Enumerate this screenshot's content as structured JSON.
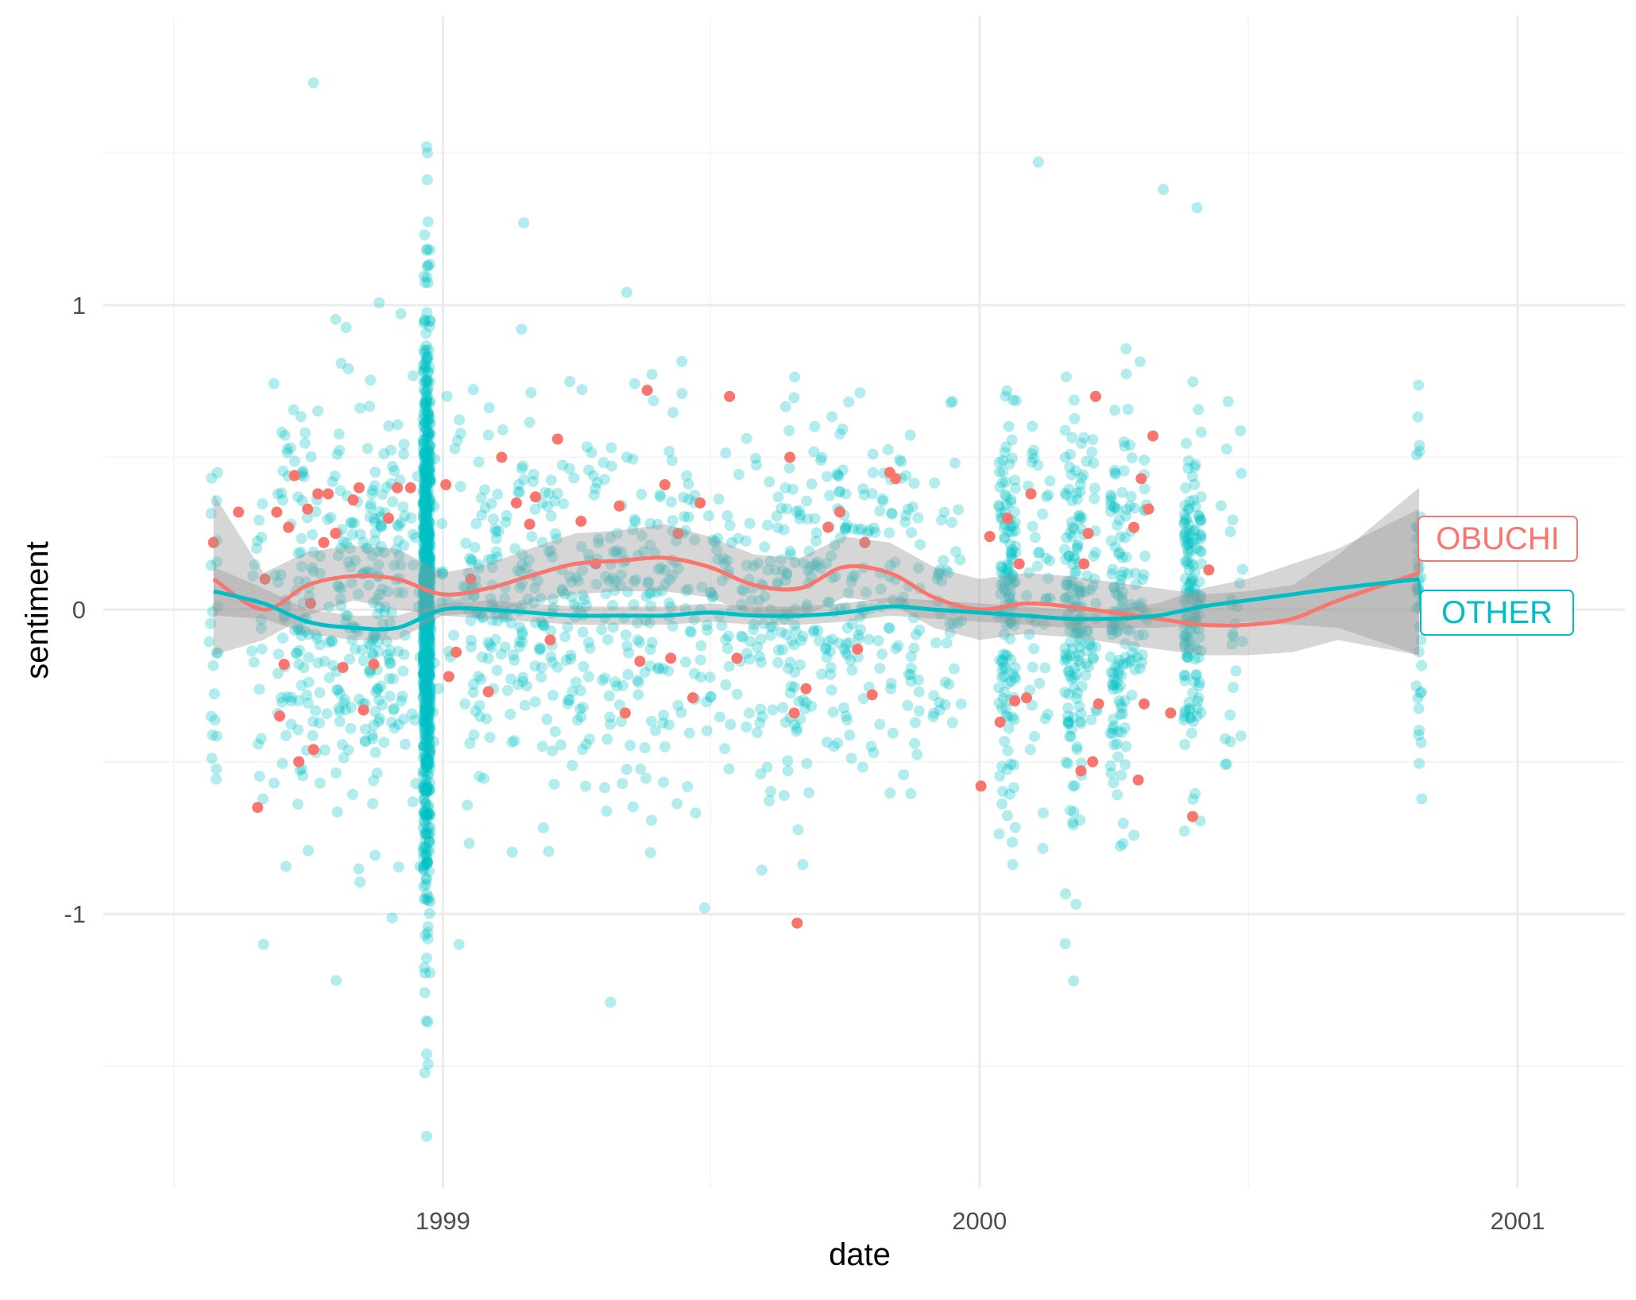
{
  "chart_data": {
    "type": "scatter",
    "title": "",
    "xlabel": "date",
    "ylabel": "sentiment",
    "x_ticks": [
      "1999",
      "2000",
      "2001"
    ],
    "y_ticks": [
      "-1",
      "0",
      "1"
    ],
    "xlim": [
      "1998-05-15",
      "2001-03-15"
    ],
    "ylim": [
      -1.9,
      1.95
    ],
    "grid": true,
    "legend": "direct labels at right end of trend lines",
    "colors": {
      "OBUCHI": "#F8766D",
      "OTHER": "#00BFC4",
      "ribbon": "#999999",
      "grid_major": "#EBEBEB",
      "grid_minor": "#F5F5F5"
    },
    "series": [
      {
        "name": "OBUCHI",
        "description_points": "raw scatter points (jittered) for OBUCHI",
        "smooth": {
          "x": [
            "1998-07-29",
            "1998-09-01",
            "1998-10-01",
            "1998-11-01",
            "1998-12-01",
            "1999-01-01",
            "1999-02-01",
            "1999-03-01",
            "1999-04-01",
            "1999-05-01",
            "1999-06-01",
            "1999-07-01",
            "1999-08-01",
            "1999-09-01",
            "1999-10-01",
            "1999-11-01",
            "1999-12-01",
            "2000-01-01",
            "2000-02-01",
            "2000-03-01",
            "2000-04-01",
            "2000-05-01",
            "2000-06-01",
            "2000-07-01",
            "2000-08-01",
            "2000-09-01",
            "2000-10-26"
          ],
          "y": [
            0.1,
            0.0,
            0.08,
            0.11,
            0.1,
            0.05,
            0.07,
            0.11,
            0.15,
            0.16,
            0.17,
            0.14,
            0.08,
            0.07,
            0.14,
            0.12,
            0.04,
            0.0,
            0.02,
            0.01,
            -0.01,
            -0.03,
            -0.05,
            -0.05,
            -0.03,
            0.03,
            0.12
          ],
          "lower": [
            -0.15,
            -0.1,
            -0.02,
            0.03,
            0.0,
            -0.02,
            -0.01,
            0.02,
            0.05,
            0.06,
            0.06,
            0.04,
            -0.02,
            -0.03,
            0.04,
            0.02,
            -0.06,
            -0.1,
            -0.08,
            -0.09,
            -0.11,
            -0.13,
            -0.15,
            -0.15,
            -0.14,
            -0.1,
            -0.15
          ],
          "upper": [
            0.38,
            0.12,
            0.19,
            0.21,
            0.2,
            0.12,
            0.15,
            0.2,
            0.25,
            0.26,
            0.28,
            0.24,
            0.18,
            0.17,
            0.24,
            0.22,
            0.14,
            0.1,
            0.12,
            0.11,
            0.09,
            0.07,
            0.05,
            0.06,
            0.08,
            0.18,
            0.4
          ]
        }
      },
      {
        "name": "OTHER",
        "smooth": {
          "x": [
            "1998-07-29",
            "1998-09-01",
            "1998-10-01",
            "1998-11-01",
            "1998-12-01",
            "1999-01-01",
            "1999-02-01",
            "1999-03-01",
            "1999-04-01",
            "1999-05-01",
            "1999-06-01",
            "1999-07-01",
            "1999-08-01",
            "1999-09-01",
            "1999-10-01",
            "1999-11-01",
            "1999-12-01",
            "2000-01-01",
            "2000-02-01",
            "2000-03-01",
            "2000-04-01",
            "2000-05-01",
            "2000-06-01",
            "2000-07-01",
            "2000-08-01",
            "2000-09-01",
            "2000-10-26"
          ],
          "y": [
            0.06,
            0.02,
            -0.04,
            -0.06,
            -0.06,
            0.0,
            0.0,
            -0.01,
            -0.02,
            -0.02,
            -0.02,
            -0.01,
            -0.02,
            -0.02,
            -0.01,
            0.01,
            0.0,
            -0.01,
            -0.02,
            -0.03,
            -0.03,
            -0.02,
            0.01,
            0.03,
            0.05,
            0.07,
            0.1
          ],
          "lower": [
            -0.02,
            -0.03,
            -0.08,
            -0.1,
            -0.1,
            -0.02,
            -0.03,
            -0.04,
            -0.05,
            -0.05,
            -0.05,
            -0.04,
            -0.05,
            -0.05,
            -0.04,
            -0.02,
            -0.03,
            -0.04,
            -0.05,
            -0.06,
            -0.06,
            -0.06,
            -0.05,
            -0.04,
            -0.05,
            -0.06,
            -0.15
          ],
          "upper": [
            0.14,
            0.07,
            0.0,
            -0.02,
            -0.02,
            0.02,
            0.03,
            0.02,
            0.01,
            0.01,
            0.01,
            0.02,
            0.01,
            0.01,
            0.02,
            0.04,
            0.03,
            0.02,
            0.01,
            0.0,
            0.0,
            0.02,
            0.07,
            0.1,
            0.15,
            0.2,
            0.33
          ]
        }
      }
    ],
    "label_boxes": [
      {
        "text": "OBUCHI",
        "series": "OBUCHI"
      },
      {
        "text": "OTHER",
        "series": "OTHER"
      }
    ]
  }
}
